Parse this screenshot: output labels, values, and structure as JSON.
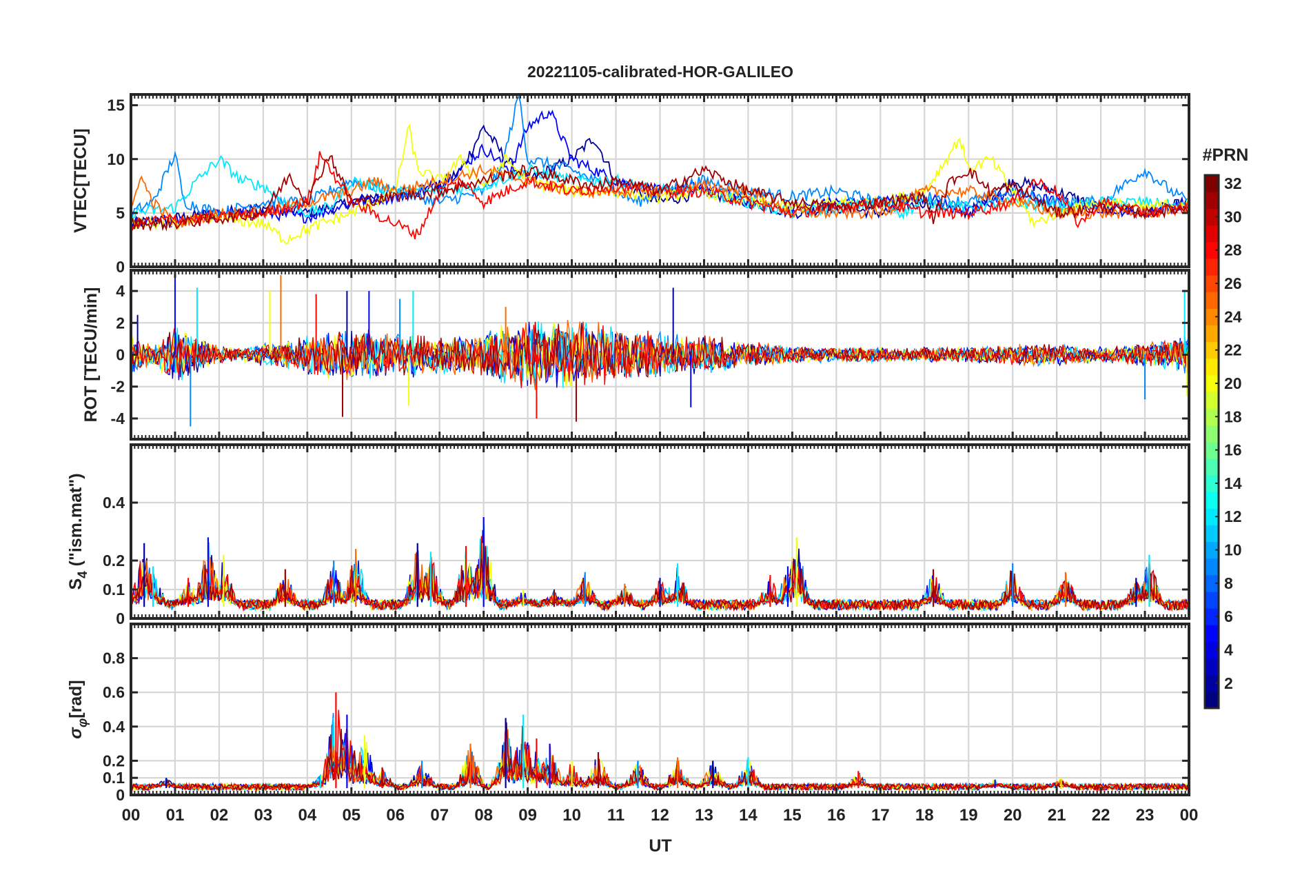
{
  "figure": {
    "title": "20221105-calibrated-HOR-GALILEO",
    "xlabel": "UT",
    "x_ticks": [
      "00",
      "01",
      "02",
      "03",
      "04",
      "05",
      "06",
      "07",
      "08",
      "09",
      "10",
      "11",
      "12",
      "13",
      "14",
      "15",
      "16",
      "17",
      "18",
      "19",
      "20",
      "21",
      "22",
      "23",
      "00"
    ],
    "colorbar": {
      "label": "#PRN",
      "range": [
        1,
        32
      ],
      "ticks": [
        "2",
        "4",
        "6",
        "8",
        "10",
        "12",
        "14",
        "16",
        "18",
        "20",
        "22",
        "24",
        "26",
        "28",
        "30",
        "32"
      ],
      "colormap": "jet"
    }
  },
  "chart_data": [
    {
      "type": "line",
      "panel": "vtec",
      "ylabel": "VTEC[TECU]",
      "ylim": [
        0,
        16
      ],
      "yticks": [
        "0",
        "5",
        "10",
        "15"
      ],
      "xlim": [
        0,
        24
      ],
      "grid": true,
      "series": [
        {
          "prn": 2,
          "x": [
            0,
            1,
            2,
            3,
            4,
            5,
            6,
            7,
            7.5,
            8,
            8.5,
            9,
            9.5,
            10,
            10.5,
            11,
            11.5,
            12,
            13,
            14,
            15,
            16,
            17,
            18,
            19,
            20,
            21,
            22,
            23,
            24
          ],
          "y": [
            4,
            4.5,
            5,
            5.5,
            5,
            6,
            7,
            7.5,
            9,
            13,
            10,
            8,
            9,
            10,
            12,
            8,
            7,
            6,
            7,
            6,
            5,
            5.5,
            5,
            6,
            5,
            8,
            7,
            5.5,
            5,
            6
          ]
        },
        {
          "prn": 5,
          "x": [
            0,
            1,
            2,
            3,
            4,
            5,
            6,
            7,
            8,
            8.6,
            9,
            9.5,
            10,
            11,
            12,
            13,
            14,
            15,
            16,
            17,
            18,
            19,
            20,
            21,
            22,
            23,
            24
          ],
          "y": [
            4,
            4.2,
            5,
            5,
            4.6,
            6,
            6.5,
            7.5,
            11,
            9,
            13,
            14.5,
            10,
            8,
            7,
            7.5,
            6,
            5.5,
            6,
            6,
            6.5,
            5,
            7,
            6,
            5.5,
            5,
            6
          ]
        },
        {
          "prn": 9,
          "x": [
            0,
            0.5,
            1,
            1.2,
            2,
            3,
            4,
            5,
            6,
            7,
            8,
            8.4,
            8.8,
            9,
            10,
            11,
            11.5,
            12,
            13,
            14,
            15,
            16,
            17,
            18,
            19,
            20,
            21,
            22,
            23,
            23.6,
            24
          ],
          "y": [
            5,
            6,
            10.5,
            6,
            5,
            6,
            6,
            8,
            7,
            6,
            7,
            9,
            16,
            10,
            9,
            7,
            6,
            7,
            8,
            7,
            6.5,
            7,
            6,
            6.5,
            6,
            7,
            6,
            6,
            9,
            7,
            6
          ]
        },
        {
          "prn": 12,
          "x": [
            0,
            1,
            1.5,
            2,
            2.5,
            3,
            3.5,
            4,
            4.5,
            5,
            6,
            7,
            8,
            9,
            10,
            11,
            12,
            13,
            14,
            15,
            16,
            17,
            17.5,
            18,
            19,
            20,
            21,
            22,
            23,
            24
          ],
          "y": [
            5,
            5.5,
            8,
            10,
            8,
            7.5,
            6,
            5,
            5.5,
            8,
            7,
            7,
            7.5,
            9,
            8,
            8,
            7,
            7,
            6,
            5,
            5.5,
            6,
            5,
            6,
            5.5,
            6,
            5.5,
            6,
            6,
            5.5
          ]
        },
        {
          "prn": 20,
          "x": [
            0,
            1,
            2,
            3,
            3.5,
            4,
            5,
            6,
            6.3,
            6.5,
            7,
            7.5,
            8,
            8.5,
            9,
            10,
            11,
            12,
            13,
            14,
            15,
            16,
            17,
            18,
            18.5,
            18.8,
            19,
            19.5,
            20,
            20.5,
            21,
            22,
            23,
            24
          ],
          "y": [
            4,
            4,
            4.5,
            4,
            2.5,
            3.5,
            5,
            7,
            13,
            9,
            8,
            10,
            7.5,
            10,
            8,
            7,
            7,
            6.5,
            7,
            6,
            5.5,
            6,
            6,
            7,
            10,
            12,
            9,
            10,
            7,
            4,
            5,
            6,
            5.5,
            6
          ]
        },
        {
          "prn": 25,
          "x": [
            0,
            0.2,
            0.5,
            1,
            2,
            3,
            4,
            5,
            5.5,
            6,
            7,
            8,
            9,
            10,
            11,
            12,
            13,
            14,
            15,
            16,
            17,
            18,
            19,
            20,
            21,
            22,
            23,
            24
          ],
          "y": [
            5,
            8.5,
            6,
            4,
            5,
            5,
            6,
            7,
            8,
            7,
            8,
            9,
            8,
            7,
            7,
            7,
            7.5,
            7,
            5,
            5,
            5,
            7,
            7,
            6,
            5,
            5,
            5,
            5.5
          ]
        },
        {
          "prn": 28,
          "x": [
            0,
            1,
            2,
            3,
            4,
            4.3,
            5,
            6,
            6.5,
            7,
            7.5,
            8,
            9,
            10,
            11,
            12,
            13,
            14,
            15,
            16,
            17,
            18,
            19,
            20,
            20.5,
            21,
            21.5,
            22,
            23,
            24
          ],
          "y": [
            4,
            4.5,
            4.5,
            5,
            6,
            10.5,
            6,
            4,
            3,
            7,
            8,
            6,
            8,
            7,
            7.5,
            7,
            7,
            6,
            5,
            5.5,
            6,
            5,
            5,
            6,
            8,
            7,
            4,
            6,
            5,
            5.5
          ]
        },
        {
          "prn": 31,
          "x": [
            0,
            1,
            2,
            3,
            3.6,
            4,
            4.5,
            5,
            6,
            7,
            8,
            9,
            10,
            10.5,
            11,
            12,
            13,
            14,
            15,
            16,
            17,
            18,
            18.2,
            18.6,
            19,
            19.5,
            20,
            21,
            22,
            23,
            24
          ],
          "y": [
            4,
            4,
            4.5,
            5,
            8.5,
            6,
            10.5,
            6,
            6.5,
            7,
            8,
            9,
            8,
            7.5,
            8,
            7,
            9,
            7,
            6,
            5.5,
            6,
            6.5,
            4.5,
            8,
            9,
            7,
            7.5,
            5,
            5.5,
            5,
            5.5
          ]
        }
      ]
    },
    {
      "type": "line",
      "panel": "rot",
      "ylabel": "ROT [TECU/min]",
      "ylim": [
        -5.3,
        5.3
      ],
      "yticks": [
        "-4",
        "-2",
        "0",
        "2",
        "4"
      ],
      "xlim": [
        0,
        24
      ],
      "grid": true,
      "spread_profile": {
        "x": [
          0,
          0.5,
          1,
          1.5,
          2,
          2.5,
          3,
          3.5,
          4,
          4.5,
          5,
          5.5,
          6,
          6.5,
          7,
          7.5,
          8,
          8.5,
          9,
          9.5,
          10,
          10.5,
          11,
          11.5,
          12,
          12.5,
          13,
          13.5,
          14,
          14.5,
          15,
          15.5,
          16,
          16.5,
          17,
          17.5,
          18,
          18.5,
          19,
          19.5,
          20,
          20.5,
          21,
          21.5,
          22,
          22.5,
          23,
          23.5,
          24
        ],
        "amplitude_tecu_per_min": [
          1.2,
          0.8,
          2,
          1.2,
          0.6,
          0.5,
          0.8,
          1,
          1.3,
          1.6,
          1.8,
          1.6,
          1.4,
          1.5,
          1.3,
          1.3,
          1.5,
          2,
          2.3,
          2.2,
          2.4,
          2.2,
          1.8,
          1.6,
          1.5,
          1.3,
          1.3,
          1.1,
          0.9,
          0.7,
          0.6,
          0.5,
          0.5,
          0.5,
          0.5,
          0.4,
          0.5,
          0.5,
          0.6,
          0.6,
          0.7,
          0.8,
          0.7,
          0.6,
          0.5,
          0.6,
          0.8,
          1,
          1.5
        ]
      },
      "spikes": [
        {
          "x": 0.15,
          "y": 2.5
        },
        {
          "x": 1.0,
          "y": 5.3
        },
        {
          "x": 1.35,
          "y": -4.5
        },
        {
          "x": 1.5,
          "y": 4.2
        },
        {
          "x": 3.15,
          "y": 4.0
        },
        {
          "x": 3.4,
          "y": 5.0
        },
        {
          "x": 4.2,
          "y": 3.8
        },
        {
          "x": 4.8,
          "y": -3.9
        },
        {
          "x": 4.9,
          "y": 4.0
        },
        {
          "x": 5.4,
          "y": 4.0
        },
        {
          "x": 6.1,
          "y": 3.5
        },
        {
          "x": 6.4,
          "y": 4.0
        },
        {
          "x": 6.3,
          "y": -3.2
        },
        {
          "x": 8.5,
          "y": 3.0
        },
        {
          "x": 9.2,
          "y": -4.0
        },
        {
          "x": 10.1,
          "y": -4.2
        },
        {
          "x": 12.3,
          "y": 4.2
        },
        {
          "x": 12.7,
          "y": -3.3
        },
        {
          "x": 23.0,
          "y": -2.8
        },
        {
          "x": 23.9,
          "y": 4.0
        },
        {
          "x": 23.95,
          "y": -2.6
        }
      ]
    },
    {
      "type": "line",
      "panel": "s4",
      "ylabel": "S4 (\"ism.mat\")",
      "ylabel_main": "S",
      "ylabel_sub": "4",
      "ylabel_rest": "(\"ism.mat\")",
      "ylim": [
        0,
        0.6
      ],
      "yticks": [
        "0",
        "0.1",
        "0.2",
        "0.4"
      ],
      "xlim": [
        0,
        24
      ],
      "grid": true,
      "baseline_s4": 0.04,
      "peaks": [
        {
          "x": 0.3,
          "y": 0.26
        },
        {
          "x": 0.5,
          "y": 0.18
        },
        {
          "x": 1.3,
          "y": 0.14
        },
        {
          "x": 1.75,
          "y": 0.28
        },
        {
          "x": 2.1,
          "y": 0.22
        },
        {
          "x": 3.5,
          "y": 0.17
        },
        {
          "x": 4.6,
          "y": 0.2
        },
        {
          "x": 5.1,
          "y": 0.24
        },
        {
          "x": 6.5,
          "y": 0.26
        },
        {
          "x": 6.8,
          "y": 0.23
        },
        {
          "x": 7.6,
          "y": 0.25
        },
        {
          "x": 8.0,
          "y": 0.35
        },
        {
          "x": 8.9,
          "y": 0.1
        },
        {
          "x": 9.6,
          "y": 0.1
        },
        {
          "x": 10.3,
          "y": 0.16
        },
        {
          "x": 11.2,
          "y": 0.12
        },
        {
          "x": 12.0,
          "y": 0.14
        },
        {
          "x": 12.4,
          "y": 0.19
        },
        {
          "x": 14.5,
          "y": 0.15
        },
        {
          "x": 14.9,
          "y": 0.18
        },
        {
          "x": 15.1,
          "y": 0.28
        },
        {
          "x": 18.2,
          "y": 0.17
        },
        {
          "x": 20.0,
          "y": 0.19
        },
        {
          "x": 21.2,
          "y": 0.16
        },
        {
          "x": 22.8,
          "y": 0.14
        },
        {
          "x": 23.1,
          "y": 0.22
        }
      ]
    },
    {
      "type": "line",
      "panel": "sigma_phi",
      "ylabel": "σφ[rad]",
      "ylabel_main": "σ",
      "ylabel_sub": "φ",
      "ylabel_rest": "[rad]",
      "ylim": [
        0,
        1
      ],
      "yticks": [
        "0",
        "0.1",
        "0.2",
        "0.4",
        "0.6",
        "0.8"
      ],
      "xlim": [
        0,
        24
      ],
      "grid": true,
      "baseline_rad": 0.04,
      "peaks": [
        {
          "x": 0.8,
          "y": 0.1
        },
        {
          "x": 4.3,
          "y": 0.12
        },
        {
          "x": 4.65,
          "y": 0.6
        },
        {
          "x": 4.9,
          "y": 0.47
        },
        {
          "x": 5.3,
          "y": 0.35
        },
        {
          "x": 5.7,
          "y": 0.16
        },
        {
          "x": 6.6,
          "y": 0.2
        },
        {
          "x": 7.7,
          "y": 0.3
        },
        {
          "x": 8.5,
          "y": 0.45
        },
        {
          "x": 8.9,
          "y": 0.47
        },
        {
          "x": 9.2,
          "y": 0.33
        },
        {
          "x": 9.5,
          "y": 0.3
        },
        {
          "x": 10.0,
          "y": 0.2
        },
        {
          "x": 10.6,
          "y": 0.25
        },
        {
          "x": 11.5,
          "y": 0.2
        },
        {
          "x": 12.4,
          "y": 0.22
        },
        {
          "x": 13.2,
          "y": 0.2
        },
        {
          "x": 14.0,
          "y": 0.22
        },
        {
          "x": 16.5,
          "y": 0.14
        },
        {
          "x": 19.6,
          "y": 0.09
        },
        {
          "x": 21.1,
          "y": 0.1
        }
      ]
    }
  ]
}
